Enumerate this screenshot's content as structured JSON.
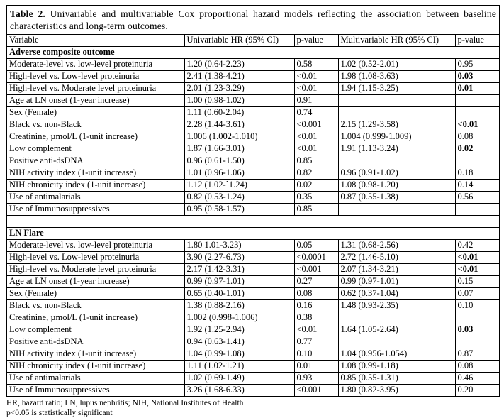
{
  "title": {
    "label": "Table 2.",
    "text": " Univariable and multivariable Cox proportional hazard models reflecting the association between baseline characteristics and long-term outcomes."
  },
  "columns": [
    "Variable",
    "Univariable HR (95% CI)",
    "p-value",
    "Multivariable HR (95% CI)",
    "p-value"
  ],
  "sections": [
    {
      "name": "Adverse composite outcome",
      "rows": [
        {
          "variable": "Moderate-level vs. low-level proteinuria",
          "uni_hr": "1.20 (0.64-2.23)",
          "uni_p": "0.58",
          "multi_hr": "1.02 (0.52-2.01)",
          "multi_p": "0.95",
          "multi_p_bold": false
        },
        {
          "variable": "High-level vs. Low-level proteinuria",
          "uni_hr": "2.41 (1.38-4.21)",
          "uni_p": "<0.01",
          "multi_hr": "1.98 (1.08-3.63)",
          "multi_p": "0.03",
          "multi_p_bold": true
        },
        {
          "variable": "High-level vs. Moderate level proteinuria",
          "uni_hr": "2.01 (1.23-3.29)",
          "uni_p": "<0.01",
          "multi_hr": "1.94 (1.15-3.25)",
          "multi_p": "0.01",
          "multi_p_bold": true
        },
        {
          "variable": "Age at LN onset (1-year increase)",
          "uni_hr": "1.00 (0.98-1.02)",
          "uni_p": "0.91",
          "multi_hr": "",
          "multi_p": "",
          "multi_p_bold": false
        },
        {
          "variable": "Sex (Female)",
          "uni_hr": "1.11 (0.60-2.04)",
          "uni_p": "0.74",
          "multi_hr": "",
          "multi_p": "",
          "multi_p_bold": false
        },
        {
          "variable": "Black vs. non-Black",
          "uni_hr": "2.28 (1.44-3.61)",
          "uni_p": "<0.001",
          "multi_hr": "2.15 (1.29-3.58)",
          "multi_p": "<0.01",
          "multi_p_bold": true
        },
        {
          "variable": "Creatinine, µmol/L (1-unit increase)",
          "uni_hr": "1.006 (1.002-1.010)",
          "uni_p": "<0.01",
          "multi_hr": "1.004 (0.999-1.009)",
          "multi_p": "0.08",
          "multi_p_bold": false
        },
        {
          "variable": "Low complement",
          "uni_hr": "1.87 (1.66-3.01)",
          "uni_p": "<0.01",
          "multi_hr": "1.91 (1.13-3.24)",
          "multi_p": "0.02",
          "multi_p_bold": true
        },
        {
          "variable": "Positive anti-dsDNA",
          "uni_hr": "0.96 (0.61-1.50)",
          "uni_p": "0.85",
          "multi_hr": "",
          "multi_p": "",
          "multi_p_bold": false
        },
        {
          "variable": "NIH activity index (1-unit increase)",
          "uni_hr": "1.01 (0.96-1.06)",
          "uni_p": "0.82",
          "multi_hr": "0.96 (0.91-1.02)",
          "multi_p": "0.18",
          "multi_p_bold": false
        },
        {
          "variable": "NIH chronicity index (1-unit increase)",
          "uni_hr": "1.12 (1.02-`1.24)",
          "uni_p": "0.02",
          "multi_hr": "1.08 (0.98-1.20)",
          "multi_p": "0.14",
          "multi_p_bold": false
        },
        {
          "variable": "Use of antimalarials",
          "uni_hr": "0.82 (0.53-1.24)",
          "uni_p": "0.35",
          "multi_hr": "0.87 (0.55-1.38)",
          "multi_p": "0.56",
          "multi_p_bold": false
        },
        {
          "variable": "Use of Immunosuppressives",
          "uni_hr": "0.95 (0.58-1.57)",
          "uni_p": "0.85",
          "multi_hr": "",
          "multi_p": "",
          "multi_p_bold": false
        }
      ]
    },
    {
      "name": "LN Flare",
      "rows": [
        {
          "variable": "Moderate-level vs. low-level proteinuria",
          "uni_hr": "1.80 1.01-3.23)",
          "uni_p": "0.05",
          "multi_hr": "1.31 (0.68-2.56)",
          "multi_p": "0.42",
          "multi_p_bold": false
        },
        {
          "variable": "High-level vs. Low-level proteinuria",
          "uni_hr": "3.90 (2.27-6.73)",
          "uni_p": "<0.0001",
          "multi_hr": "2.72 (1.46-5.10)",
          "multi_p": "<0.01",
          "multi_p_bold": true
        },
        {
          "variable": "High-level vs. Moderate level proteinuria",
          "uni_hr": "2.17 (1.42-3.31)",
          "uni_p": "<0.001",
          "multi_hr": "2.07 (1.34-3.21)",
          "multi_p": "<0.01",
          "multi_p_bold": true
        },
        {
          "variable": "Age at LN onset (1-year increase)",
          "uni_hr": "0.99 (0.97-1.01)",
          "uni_p": "0.27",
          "multi_hr": "0.99 (0.97-1.01)",
          "multi_p": "0.15",
          "multi_p_bold": false
        },
        {
          "variable": "Sex (Female)",
          "uni_hr": "0.65 (0.40-1.01)",
          "uni_p": "0.08",
          "multi_hr": "0.62 (0.37-1.04)",
          "multi_p": "0.07",
          "multi_p_bold": false
        },
        {
          "variable": "Black vs. non-Black",
          "uni_hr": "1.38 (0.88-2.16)",
          "uni_p": "0.16",
          "multi_hr": "1.48 (0.93-2.35)",
          "multi_p": "0.10",
          "multi_p_bold": false
        },
        {
          "variable": "Creatinine, µmol/L (1-unit increase)",
          "uni_hr": "1.002 (0.998-1.006)",
          "uni_p": "0.38",
          "multi_hr": "",
          "multi_p": "",
          "multi_p_bold": false
        },
        {
          "variable": "Low complement",
          "uni_hr": "1.92 (1.25-2.94)",
          "uni_p": "<0.01",
          "multi_hr": "1.64 (1.05-2.64)",
          "multi_p": "0.03",
          "multi_p_bold": true
        },
        {
          "variable": "Positive anti-dsDNA",
          "uni_hr": "0.94 (0.63-1.41)",
          "uni_p": "0.77",
          "multi_hr": "",
          "multi_p": "",
          "multi_p_bold": false
        },
        {
          "variable": "NIH activity index (1-unit increase)",
          "uni_hr": "1.04 (0.99-1.08)",
          "uni_p": "0.10",
          "multi_hr": "1.04 (0.956-1.054)",
          "multi_p": "0.87",
          "multi_p_bold": false
        },
        {
          "variable": "NIH chronicity index (1-unit increase)",
          "uni_hr": "1.11 (1.02-1.21)",
          "uni_p": "0.01",
          "multi_hr": "1.08 (0.99-1.18)",
          "multi_p": "0.08",
          "multi_p_bold": false
        },
        {
          "variable": "Use of antimalarials",
          "uni_hr": "1.02 (0.69-1.49)",
          "uni_p": "0.93",
          "multi_hr": "0.85 (0.55-1.31)",
          "multi_p": "0.46",
          "multi_p_bold": false
        },
        {
          "variable": "Use of Immunosuppressives",
          "uni_hr": "3.26 (1.68-6.33)",
          "uni_p": "<0.001",
          "multi_hr": "1.80 (0.82-3.95)",
          "multi_p": "0.20",
          "multi_p_bold": false
        }
      ]
    }
  ],
  "footnotes": [
    "HR, hazard ratio; LN, lupus nephritis; NIH, National Institutes of Health",
    "p<0.05 is statistically significant"
  ]
}
